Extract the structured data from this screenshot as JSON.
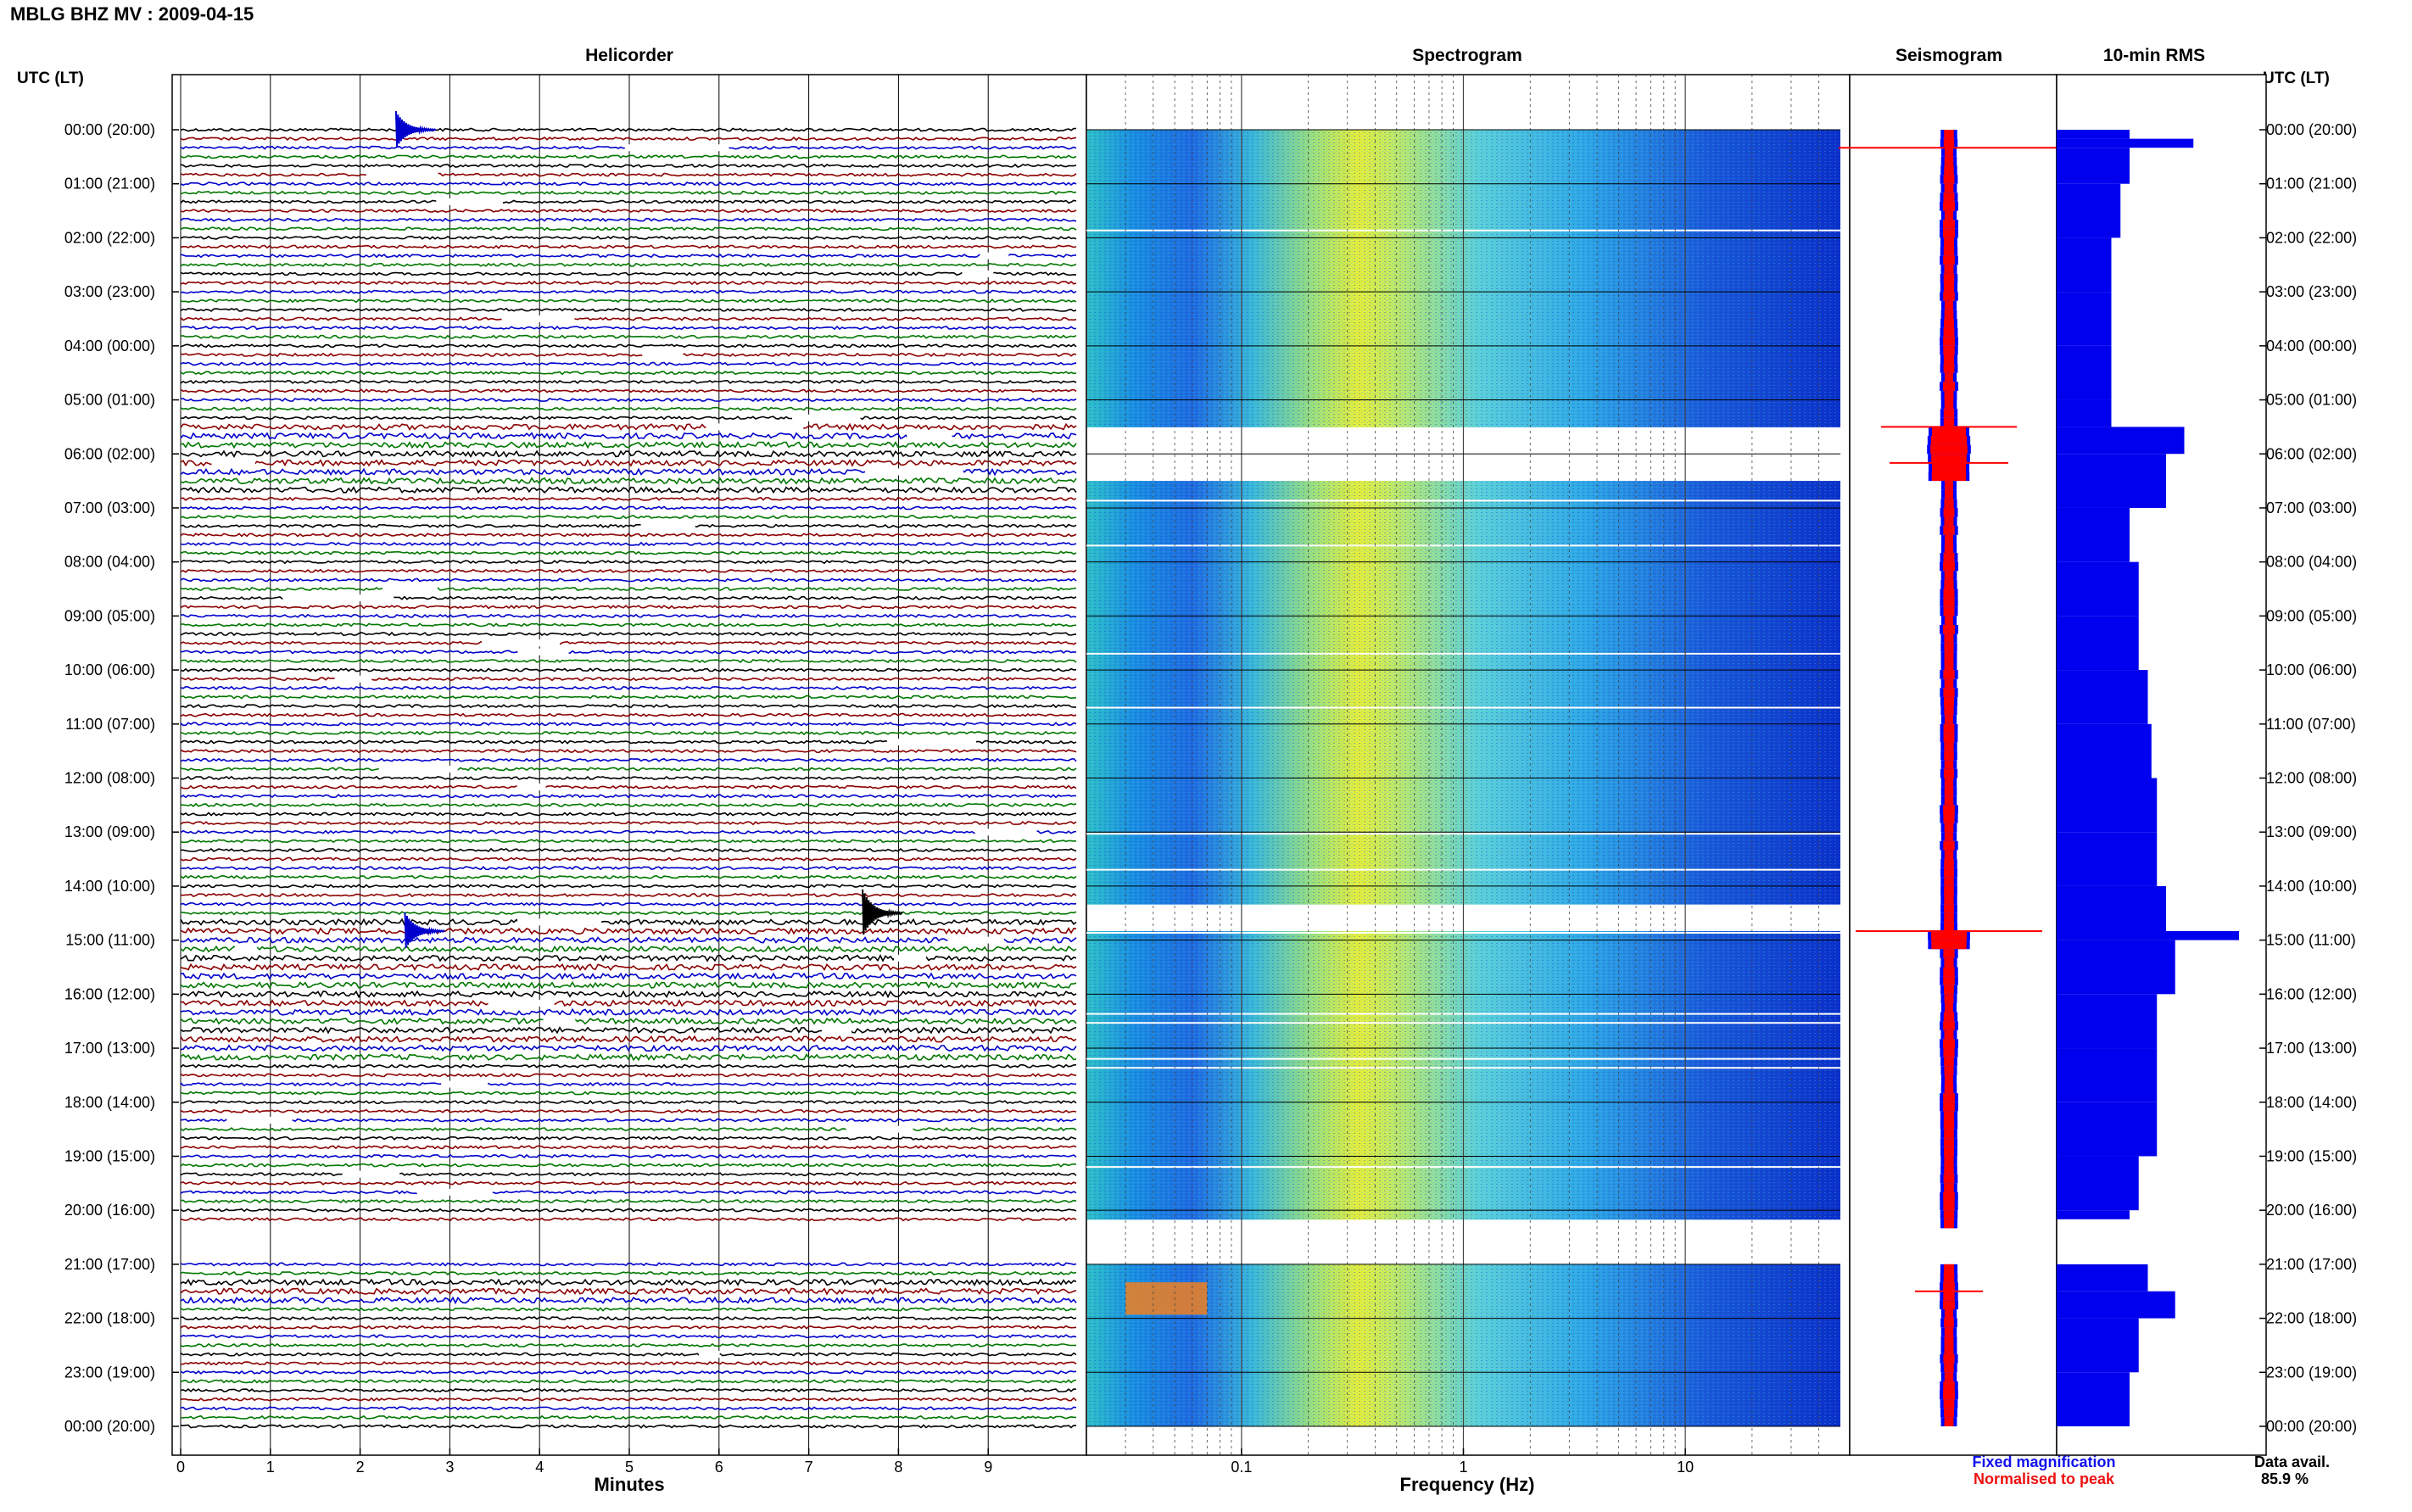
{
  "header": {
    "station_title": "MBLG BHZ MV : 2009-04-15",
    "utc_label_left": "UTC (LT)",
    "utc_label_right": "UTC (LT)"
  },
  "panels": {
    "helicorder_title": "Helicorder",
    "spectrogram_title": "Spectrogram",
    "seismogram_title": "Seismogram",
    "rms_title": "10-min RMS"
  },
  "time_labels": [
    "00:00 (20:00)",
    "01:00 (21:00)",
    "02:00 (22:00)",
    "03:00 (23:00)",
    "04:00 (00:00)",
    "05:00 (01:00)",
    "06:00 (02:00)",
    "07:00 (03:00)",
    "08:00 (04:00)",
    "09:00 (05:00)",
    "10:00 (06:00)",
    "11:00 (07:00)",
    "12:00 (08:00)",
    "13:00 (09:00)",
    "14:00 (10:00)",
    "15:00 (11:00)",
    "16:00 (12:00)",
    "17:00 (13:00)",
    "18:00 (14:00)",
    "19:00 (15:00)",
    "20:00 (16:00)",
    "21:00 (17:00)",
    "22:00 (18:00)",
    "23:00 (19:00)",
    "00:00 (20:00)"
  ],
  "footer": {
    "legend_fixed": "Fixed magnification",
    "legend_normalised": "Normalised to peak",
    "data_avail_label": "Data avail.",
    "data_avail_value": "85.9 %"
  },
  "colors": {
    "trace_black": "#000000",
    "trace_red": "#8b0000",
    "trace_blue": "#0000cc",
    "trace_green": "#007700",
    "rms_bar": "#0000ee",
    "seis_fixed": "#0000ff",
    "seis_normalised": "#ff0000"
  },
  "chart_data": [
    {
      "type": "line",
      "title": "Helicorder",
      "xlabel": "Minutes",
      "x_ticks": [
        "0",
        "1",
        "2",
        "3",
        "4",
        "5",
        "6",
        "7",
        "8",
        "9"
      ],
      "xlim": [
        0,
        10
      ],
      "rows_per_hour": 6,
      "trace_color_cycle": [
        "black",
        "red",
        "blue",
        "green"
      ],
      "events": [
        {
          "time_utc": "00:00",
          "minute": 2.4,
          "note": "blue spike"
        },
        {
          "time_utc": "14:30",
          "minute": 7.6,
          "note": "large black spike"
        },
        {
          "time_utc": "14:50",
          "minute": 2.5,
          "note": "blue spike"
        }
      ],
      "gaps_utc": [
        [
          "20:10",
          "21:00"
        ]
      ]
    },
    {
      "type": "heatmap",
      "title": "Spectrogram",
      "xlabel": "Frequency (Hz)",
      "x_scale": "log",
      "x_ticks": [
        "0.1",
        "1",
        "10"
      ],
      "xlim": [
        0.02,
        50
      ],
      "dominant_band_hz": [
        0.2,
        0.4
      ],
      "gaps_utc": [
        [
          "05:35",
          "06:35"
        ],
        [
          "14:20",
          "14:50"
        ],
        [
          "20:10",
          "21:00"
        ]
      ]
    },
    {
      "type": "bar",
      "title": "10-min RMS",
      "categories": [
        "00:00",
        "00:10",
        "00:20",
        "01:00",
        "02:00",
        "03:00",
        "04:00",
        "05:00",
        "05:30",
        "06:00",
        "07:00",
        "08:00",
        "09:00",
        "10:00",
        "11:00",
        "12:00",
        "13:00",
        "14:00",
        "14:50",
        "15:00",
        "16:00",
        "17:00",
        "18:00",
        "19:00",
        "20:00",
        "21:00",
        "21:30",
        "22:00",
        "23:00"
      ],
      "values": [
        0.4,
        0.75,
        0.4,
        0.35,
        0.3,
        0.3,
        0.3,
        0.3,
        0.7,
        0.6,
        0.4,
        0.45,
        0.45,
        0.5,
        0.52,
        0.55,
        0.55,
        0.6,
        1.0,
        0.65,
        0.55,
        0.55,
        0.55,
        0.45,
        0.4,
        0.5,
        0.65,
        0.45,
        0.4
      ]
    }
  ]
}
